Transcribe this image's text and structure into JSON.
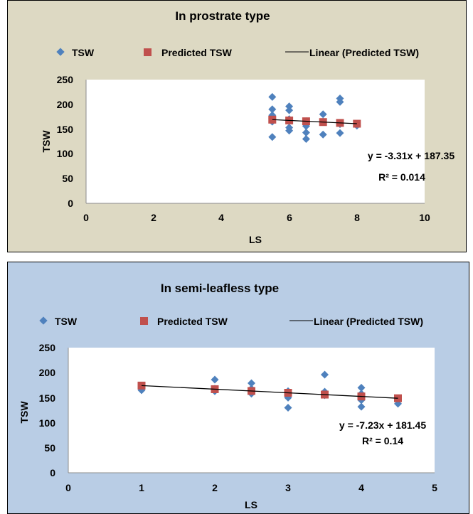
{
  "colors": {
    "tsw": "#4f81bd",
    "predicted": "#c0504d",
    "trend": "#000000"
  },
  "chart_data": [
    {
      "type": "scatter",
      "title": "In prostrate type",
      "xlabel": "LS",
      "ylabel": "TSW",
      "xlim": [
        0,
        10
      ],
      "ylim": [
        0,
        250
      ],
      "x_ticks": [
        "0",
        "2",
        "4",
        "6",
        "8",
        "10"
      ],
      "y_ticks": [
        "0",
        "50",
        "100",
        "150",
        "200",
        "250"
      ],
      "grid": false,
      "background": "#ddd9c3",
      "legend": {
        "position": "top",
        "items": [
          "TSW",
          "Predicted TSW",
          "Linear (Predicted TSW)"
        ]
      },
      "series": [
        {
          "name": "TSW",
          "marker": "diamond",
          "points": [
            [
              5.5,
              215
            ],
            [
              5.5,
              190
            ],
            [
              5.5,
              178
            ],
            [
              5.5,
              172
            ],
            [
              5.5,
              165
            ],
            [
              5.5,
              134
            ],
            [
              6,
              196
            ],
            [
              6,
              188
            ],
            [
              6,
              170
            ],
            [
              6,
              153
            ],
            [
              6,
              147
            ],
            [
              6.5,
              166
            ],
            [
              6.5,
              156
            ],
            [
              6.5,
              143
            ],
            [
              6.5,
              130
            ],
            [
              7,
              180
            ],
            [
              7,
              165
            ],
            [
              7,
              139
            ],
            [
              7.5,
              212
            ],
            [
              7.5,
              205
            ],
            [
              7.5,
              160
            ],
            [
              7.5,
              142
            ],
            [
              8,
              157
            ]
          ]
        },
        {
          "name": "Predicted TSW",
          "marker": "square",
          "points": [
            [
              5.5,
              169.1
            ],
            [
              6,
              167.5
            ],
            [
              6.5,
              165.8
            ],
            [
              7,
              164.2
            ],
            [
              7.5,
              162.5
            ],
            [
              8,
              160.9
            ]
          ]
        }
      ],
      "trendline": {
        "name": "Linear (Predicted TSW)",
        "slope": -3.31,
        "intercept": 187.35,
        "x_range": [
          5.5,
          8
        ]
      },
      "annotations": {
        "equation": "y = -3.31x + 187.35",
        "r2": "R² = 0.014"
      }
    },
    {
      "type": "scatter",
      "title": "In semi-leafless type",
      "xlabel": "LS",
      "ylabel": "TSW",
      "xlim": [
        0,
        5
      ],
      "ylim": [
        0,
        250
      ],
      "x_ticks": [
        "0",
        "1",
        "2",
        "3",
        "4",
        "5"
      ],
      "y_ticks": [
        "0",
        "50",
        "100",
        "150",
        "200",
        "250"
      ],
      "grid": false,
      "background": "#b9cde5",
      "legend": {
        "position": "top",
        "items": [
          "TSW",
          "Predicted TSW",
          "Linear (Predicted TSW)"
        ]
      },
      "series": [
        {
          "name": "TSW",
          "marker": "diamond",
          "points": [
            [
              1,
              165
            ],
            [
              1,
              172
            ],
            [
              2,
              186
            ],
            [
              2,
              168
            ],
            [
              2,
              163
            ],
            [
              2.5,
              179
            ],
            [
              2.5,
              168
            ],
            [
              2.5,
              158
            ],
            [
              3,
              163
            ],
            [
              3,
              150
            ],
            [
              3,
              130
            ],
            [
              3.5,
              196
            ],
            [
              3.5,
              162
            ],
            [
              3.5,
              155
            ],
            [
              4,
              170
            ],
            [
              4,
              158
            ],
            [
              4,
              150
            ],
            [
              4,
              145
            ],
            [
              4,
              132
            ],
            [
              4.5,
              138
            ]
          ]
        },
        {
          "name": "Predicted TSW",
          "marker": "square",
          "points": [
            [
              1,
              174.2
            ],
            [
              2,
              167
            ],
            [
              2.5,
              163.4
            ],
            [
              3,
              159.8
            ],
            [
              3.5,
              156.2
            ],
            [
              4,
              152.5
            ],
            [
              4.5,
              148.9
            ]
          ]
        }
      ],
      "trendline": {
        "name": "Linear (Predicted TSW)",
        "slope": -7.23,
        "intercept": 181.45,
        "x_range": [
          1,
          4.5
        ]
      },
      "annotations": {
        "equation": "y = -7.23x + 181.45",
        "r2": "R² = 0.14"
      }
    }
  ]
}
